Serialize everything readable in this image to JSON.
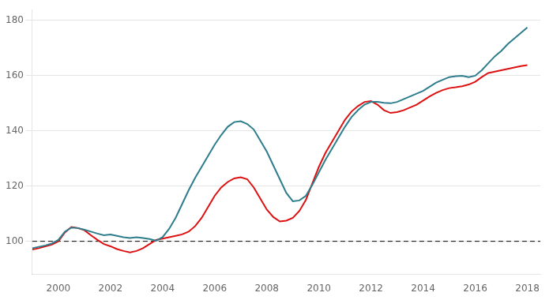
{
  "chart_data": {
    "type": "line",
    "x": [
      1999,
      1999.25,
      1999.5,
      1999.75,
      2000,
      2000.25,
      2000.5,
      2000.75,
      2001,
      2001.25,
      2001.5,
      2001.75,
      2002,
      2002.25,
      2002.5,
      2002.75,
      2003,
      2003.25,
      2003.5,
      2003.75,
      2004,
      2004.25,
      2004.5,
      2004.75,
      2005,
      2005.25,
      2005.5,
      2005.75,
      2006,
      2006.25,
      2006.5,
      2006.75,
      2007,
      2007.25,
      2007.5,
      2007.75,
      2008,
      2008.25,
      2008.5,
      2008.75,
      2009,
      2009.25,
      2009.5,
      2009.75,
      2010,
      2010.25,
      2010.5,
      2010.75,
      2011,
      2011.25,
      2011.5,
      2011.75,
      2012,
      2012.25,
      2012.5,
      2012.75,
      2013,
      2013.25,
      2013.5,
      2013.75,
      2014,
      2014.25,
      2014.5,
      2014.75,
      2015,
      2015.25,
      2015.5,
      2015.75,
      2016,
      2016.25,
      2016.5,
      2016.75,
      2017,
      2017.25,
      2017.5,
      2017.75,
      2018
    ],
    "series": [
      {
        "color": "#2d7d8c",
        "values": [
          97.5,
          98.0,
          98.5,
          99.2,
          100.5,
          103.5,
          105.0,
          104.8,
          104.2,
          103.5,
          102.8,
          102.2,
          102.5,
          102.0,
          101.5,
          101.2,
          101.5,
          101.2,
          100.8,
          100.2,
          101.5,
          104.5,
          108.5,
          113.5,
          118.5,
          123.0,
          127.0,
          131.0,
          135.0,
          138.5,
          141.5,
          143.2,
          143.5,
          142.5,
          140.5,
          136.5,
          132.5,
          127.5,
          122.5,
          117.5,
          114.5,
          114.8,
          116.5,
          120.5,
          125.0,
          129.5,
          133.5,
          137.5,
          141.5,
          145.0,
          147.5,
          149.5,
          150.5,
          150.5,
          150.2,
          150.0,
          150.5,
          151.5,
          152.5,
          153.5,
          154.5,
          156.0,
          157.5,
          158.5,
          159.5,
          159.8,
          160.0,
          159.5,
          160.0,
          162.0,
          164.5,
          167.0,
          169.0,
          171.5,
          173.5,
          175.5,
          177.5
        ]
      },
      {
        "color": "#dd1111",
        "values": [
          97.0,
          97.5,
          98.2,
          98.8,
          100.0,
          103.2,
          105.2,
          104.8,
          104.0,
          102.2,
          100.5,
          99.0,
          98.2,
          97.2,
          96.5,
          96.0,
          96.5,
          97.5,
          99.0,
          100.5,
          101.0,
          101.5,
          102.0,
          102.5,
          103.5,
          105.5,
          108.5,
          112.5,
          116.5,
          119.5,
          121.5,
          122.8,
          123.2,
          122.5,
          119.5,
          115.5,
          111.5,
          108.8,
          107.2,
          107.5,
          108.5,
          111.0,
          115.0,
          121.0,
          127.0,
          132.0,
          136.0,
          140.0,
          144.0,
          147.0,
          149.0,
          150.5,
          150.8,
          149.5,
          147.5,
          146.5,
          146.8,
          147.5,
          148.5,
          149.5,
          151.0,
          152.5,
          153.8,
          154.8,
          155.5,
          155.8,
          156.2,
          156.8,
          157.8,
          159.5,
          161.0,
          161.5,
          162.0,
          162.5,
          163.0,
          163.5,
          163.8
        ]
      }
    ],
    "reference_lines": [
      {
        "y": 100,
        "color": "#000000",
        "line_style": "dashed"
      }
    ],
    "xlim": [
      1999.0,
      2018.5
    ],
    "xticks": [
      2000,
      2002,
      2004,
      2006,
      2008,
      2010,
      2012,
      2014,
      2016,
      2018
    ],
    "ylim": [
      88,
      184
    ],
    "yticks": [
      100,
      120,
      140,
      160,
      180
    ],
    "grid": "y",
    "legend": false
  }
}
